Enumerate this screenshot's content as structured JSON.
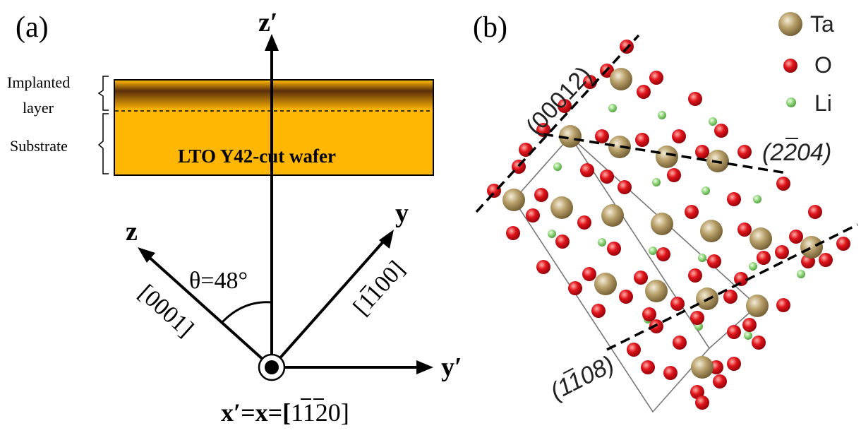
{
  "panel_a": {
    "label": "(a)",
    "implanted_layer_label_1": "Implanted",
    "implanted_layer_label_2": "layer",
    "substrate_label": "Substrate",
    "wafer_label": "LTO Y42-cut wafer",
    "axis_z_prime": "z′",
    "axis_y_prime": "y′",
    "axis_z": "z",
    "axis_y": "y",
    "dir_z": "[0001]",
    "dir_y": "[1100]",
    "angle_label": "θ=48°",
    "x_axis_label_prefix": "x′=x=[",
    "x_axis_label_digits": "1120",
    "x_axis_label_suffix": "]",
    "colors": {
      "wafer": "#ffb703",
      "implanted_dark": "#6b3a10"
    }
  },
  "panel_b": {
    "label": "(b)",
    "legend": [
      {
        "symbol": "ta-atom",
        "text": "Ta",
        "color": "#b8a06a"
      },
      {
        "symbol": "o-atom",
        "text": "O",
        "color": "#e0141c"
      },
      {
        "symbol": "li-atom",
        "text": "Li",
        "color": "#8fd47a"
      }
    ],
    "plane_00012": "(00012)",
    "plane_2204": "(2204)",
    "plane_1108": "(1108)"
  }
}
